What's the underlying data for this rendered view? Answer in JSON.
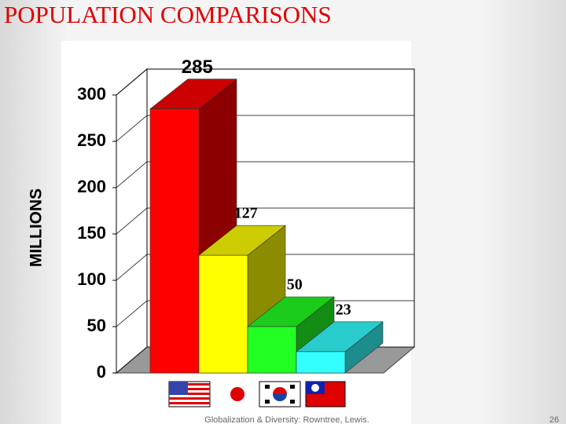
{
  "chart_data": {
    "type": "bar3d",
    "title": "POPULATION COMPARISONS",
    "y_label": "MILLIONS",
    "categories": [
      null,
      null,
      null,
      null
    ],
    "values": [
      285,
      127,
      50,
      23
    ],
    "colors": [
      "#ff0000",
      "#ffff00",
      "#22ff22",
      "#33ffff"
    ],
    "ylim": [
      0,
      300
    ],
    "yticks": [
      0,
      50,
      100,
      150,
      200,
      250,
      300
    ],
    "grid": true
  },
  "footer": {
    "source": "Globalization & Diversity: Rowntree, Lewis.",
    "page": "26"
  }
}
